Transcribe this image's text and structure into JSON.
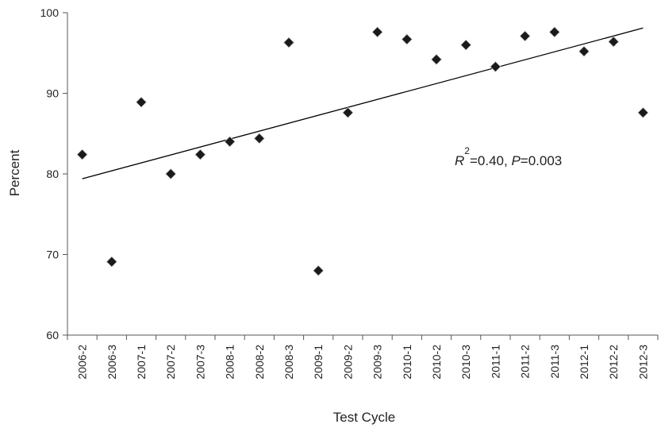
{
  "chart_data": {
    "type": "scatter",
    "categories": [
      "2006-2",
      "2006-3",
      "2007-1",
      "2007-2",
      "2007-3",
      "2008-1",
      "2008-2",
      "2008-3",
      "2009-1",
      "2009-2",
      "2009-3",
      "2010-1",
      "2010-2",
      "2010-3",
      "2011-1",
      "2011-2",
      "2011-3",
      "2012-1",
      "2012-2",
      "2012-3"
    ],
    "values": [
      82.4,
      69.1,
      88.9,
      80.0,
      82.4,
      84.0,
      84.4,
      96.3,
      68.0,
      87.6,
      97.6,
      96.7,
      94.2,
      96.0,
      93.3,
      97.1,
      97.6,
      95.2,
      96.4,
      87.6
    ],
    "trendline": {
      "type": "linear",
      "start": 79.4,
      "end": 98.1
    },
    "xlabel": "Test Cycle",
    "ylabel": "Percent",
    "ylim": [
      60,
      100
    ],
    "yticks": [
      60,
      70,
      80,
      90,
      100
    ],
    "grid": false,
    "annotation": {
      "r_symbol": "R",
      "r_exp": "2",
      "r_value": "=0.40, ",
      "p_symbol": "P",
      "p_value": "=0.003"
    },
    "colors": {
      "marker": "#1a1a1a",
      "line": "#000000",
      "axis": "#555555"
    }
  }
}
